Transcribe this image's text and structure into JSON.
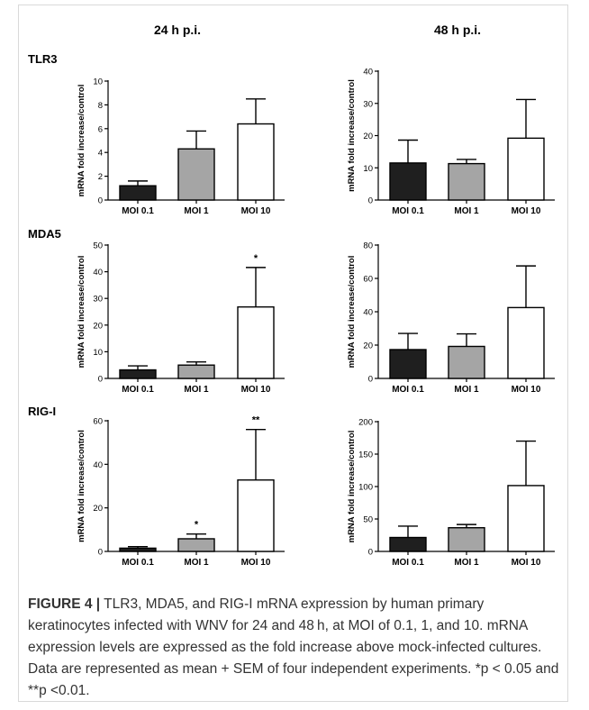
{
  "figure": {
    "column_titles": [
      "24 h p.i.",
      "48 h p.i."
    ],
    "row_titles": [
      "TLR3",
      "MDA5",
      "RIG-I"
    ]
  },
  "caption": {
    "label": "FIGURE 4 |",
    "text": " TLR3, MDA5, and RIG-I mRNA expression by human primary keratinocytes infected with WNV for 24 and 48 h, at MOI of 0.1, 1, and 10. mRNA expression levels are expressed as the fold increase above mock-infected cultures. Data are represented as mean + SEM of four independent experiments. *p < 0.05 and **p <0.01."
  },
  "colors": {
    "MOI 0.1": "#1f1f1f",
    "MOI 1": "#a5a5a5",
    "MOI 10": "#ffffff"
  },
  "chart_data": [
    {
      "type": "bar",
      "row": "TLR3",
      "column": "24 h p.i.",
      "categories": [
        "MOI 0.1",
        "MOI 1",
        "MOI 10"
      ],
      "values": [
        1.2,
        4.3,
        6.4
      ],
      "errors": [
        0.4,
        1.5,
        2.1
      ],
      "annotations": [
        "",
        "",
        ""
      ],
      "ylabel": "mRNA fold increase/control",
      "ylim": [
        0,
        10
      ],
      "yticks": [
        0,
        2,
        4,
        6,
        8,
        10
      ]
    },
    {
      "type": "bar",
      "row": "TLR3",
      "column": "48 h p.i.",
      "categories": [
        "MOI 0.1",
        "MOI 1",
        "MOI 10"
      ],
      "values": [
        11.5,
        11.3,
        19.2
      ],
      "errors": [
        7.1,
        1.3,
        12.0
      ],
      "annotations": [
        "",
        "",
        ""
      ],
      "ylabel": "mRNA fold increase/control",
      "ylim": [
        0,
        40
      ],
      "yticks": [
        0,
        10,
        20,
        30,
        40
      ]
    },
    {
      "type": "bar",
      "row": "MDA5",
      "column": "24 h p.i.",
      "categories": [
        "MOI 0.1",
        "MOI 1",
        "MOI 10"
      ],
      "values": [
        3.2,
        5.0,
        26.8
      ],
      "errors": [
        1.5,
        1.2,
        14.8
      ],
      "annotations": [
        "",
        "",
        "*"
      ],
      "ylabel": "mRNA fold increase/control",
      "ylim": [
        0,
        50
      ],
      "yticks": [
        0,
        10,
        20,
        30,
        40,
        50
      ]
    },
    {
      "type": "bar",
      "row": "MDA5",
      "column": "48 h p.i.",
      "categories": [
        "MOI 0.1",
        "MOI 1",
        "MOI 10"
      ],
      "values": [
        17.3,
        19.2,
        42.5
      ],
      "errors": [
        9.7,
        7.5,
        25.0
      ],
      "annotations": [
        "",
        "",
        ""
      ],
      "ylabel": "mRNA fold increase/control",
      "ylim": [
        0,
        80
      ],
      "yticks": [
        0,
        20,
        40,
        60,
        80
      ]
    },
    {
      "type": "bar",
      "row": "RIG-I",
      "column": "24 h p.i.",
      "categories": [
        "MOI 0.1",
        "MOI 1",
        "MOI 10"
      ],
      "values": [
        1.5,
        5.8,
        32.8
      ],
      "errors": [
        0.7,
        2.2,
        23.2
      ],
      "annotations": [
        "",
        "*",
        "**"
      ],
      "ylabel": "mRNA fold increase/control",
      "ylim": [
        0,
        60
      ],
      "yticks": [
        0,
        20,
        40,
        60
      ]
    },
    {
      "type": "bar",
      "row": "RIG-I",
      "column": "48 h p.i.",
      "categories": [
        "MOI 0.1",
        "MOI 1",
        "MOI 10"
      ],
      "values": [
        21.5,
        36.5,
        101.5
      ],
      "errors": [
        17.5,
        5.0,
        68.5
      ],
      "annotations": [
        "",
        "",
        ""
      ],
      "ylabel": "mRNA fold increase/control",
      "ylim": [
        0,
        200
      ],
      "yticks": [
        0,
        50,
        100,
        150,
        200
      ]
    }
  ]
}
